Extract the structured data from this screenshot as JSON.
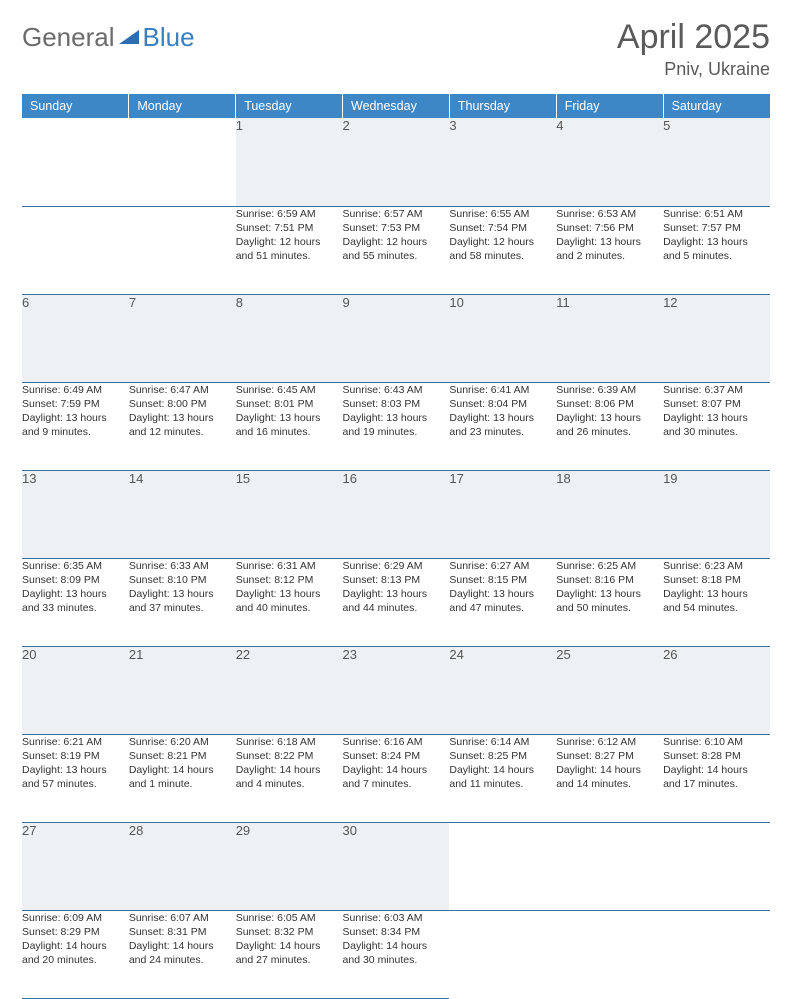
{
  "brand": {
    "part1": "General",
    "part2": "Blue"
  },
  "title": "April 2025",
  "location": "Pniv, Ukraine",
  "header_bg": "#3d87c7",
  "row_border": "#3d6ea0",
  "daynum_bg": "#eef1f3",
  "weekdays": [
    "Sunday",
    "Monday",
    "Tuesday",
    "Wednesday",
    "Thursday",
    "Friday",
    "Saturday"
  ],
  "weeks": [
    [
      null,
      null,
      {
        "n": "1",
        "sr": "Sunrise: 6:59 AM",
        "ss": "Sunset: 7:51 PM",
        "dl1": "Daylight: 12 hours",
        "dl2": "and 51 minutes."
      },
      {
        "n": "2",
        "sr": "Sunrise: 6:57 AM",
        "ss": "Sunset: 7:53 PM",
        "dl1": "Daylight: 12 hours",
        "dl2": "and 55 minutes."
      },
      {
        "n": "3",
        "sr": "Sunrise: 6:55 AM",
        "ss": "Sunset: 7:54 PM",
        "dl1": "Daylight: 12 hours",
        "dl2": "and 58 minutes."
      },
      {
        "n": "4",
        "sr": "Sunrise: 6:53 AM",
        "ss": "Sunset: 7:56 PM",
        "dl1": "Daylight: 13 hours",
        "dl2": "and 2 minutes."
      },
      {
        "n": "5",
        "sr": "Sunrise: 6:51 AM",
        "ss": "Sunset: 7:57 PM",
        "dl1": "Daylight: 13 hours",
        "dl2": "and 5 minutes."
      }
    ],
    [
      {
        "n": "6",
        "sr": "Sunrise: 6:49 AM",
        "ss": "Sunset: 7:59 PM",
        "dl1": "Daylight: 13 hours",
        "dl2": "and 9 minutes."
      },
      {
        "n": "7",
        "sr": "Sunrise: 6:47 AM",
        "ss": "Sunset: 8:00 PM",
        "dl1": "Daylight: 13 hours",
        "dl2": "and 12 minutes."
      },
      {
        "n": "8",
        "sr": "Sunrise: 6:45 AM",
        "ss": "Sunset: 8:01 PM",
        "dl1": "Daylight: 13 hours",
        "dl2": "and 16 minutes."
      },
      {
        "n": "9",
        "sr": "Sunrise: 6:43 AM",
        "ss": "Sunset: 8:03 PM",
        "dl1": "Daylight: 13 hours",
        "dl2": "and 19 minutes."
      },
      {
        "n": "10",
        "sr": "Sunrise: 6:41 AM",
        "ss": "Sunset: 8:04 PM",
        "dl1": "Daylight: 13 hours",
        "dl2": "and 23 minutes."
      },
      {
        "n": "11",
        "sr": "Sunrise: 6:39 AM",
        "ss": "Sunset: 8:06 PM",
        "dl1": "Daylight: 13 hours",
        "dl2": "and 26 minutes."
      },
      {
        "n": "12",
        "sr": "Sunrise: 6:37 AM",
        "ss": "Sunset: 8:07 PM",
        "dl1": "Daylight: 13 hours",
        "dl2": "and 30 minutes."
      }
    ],
    [
      {
        "n": "13",
        "sr": "Sunrise: 6:35 AM",
        "ss": "Sunset: 8:09 PM",
        "dl1": "Daylight: 13 hours",
        "dl2": "and 33 minutes."
      },
      {
        "n": "14",
        "sr": "Sunrise: 6:33 AM",
        "ss": "Sunset: 8:10 PM",
        "dl1": "Daylight: 13 hours",
        "dl2": "and 37 minutes."
      },
      {
        "n": "15",
        "sr": "Sunrise: 6:31 AM",
        "ss": "Sunset: 8:12 PM",
        "dl1": "Daylight: 13 hours",
        "dl2": "and 40 minutes."
      },
      {
        "n": "16",
        "sr": "Sunrise: 6:29 AM",
        "ss": "Sunset: 8:13 PM",
        "dl1": "Daylight: 13 hours",
        "dl2": "and 44 minutes."
      },
      {
        "n": "17",
        "sr": "Sunrise: 6:27 AM",
        "ss": "Sunset: 8:15 PM",
        "dl1": "Daylight: 13 hours",
        "dl2": "and 47 minutes."
      },
      {
        "n": "18",
        "sr": "Sunrise: 6:25 AM",
        "ss": "Sunset: 8:16 PM",
        "dl1": "Daylight: 13 hours",
        "dl2": "and 50 minutes."
      },
      {
        "n": "19",
        "sr": "Sunrise: 6:23 AM",
        "ss": "Sunset: 8:18 PM",
        "dl1": "Daylight: 13 hours",
        "dl2": "and 54 minutes."
      }
    ],
    [
      {
        "n": "20",
        "sr": "Sunrise: 6:21 AM",
        "ss": "Sunset: 8:19 PM",
        "dl1": "Daylight: 13 hours",
        "dl2": "and 57 minutes."
      },
      {
        "n": "21",
        "sr": "Sunrise: 6:20 AM",
        "ss": "Sunset: 8:21 PM",
        "dl1": "Daylight: 14 hours",
        "dl2": "and 1 minute."
      },
      {
        "n": "22",
        "sr": "Sunrise: 6:18 AM",
        "ss": "Sunset: 8:22 PM",
        "dl1": "Daylight: 14 hours",
        "dl2": "and 4 minutes."
      },
      {
        "n": "23",
        "sr": "Sunrise: 6:16 AM",
        "ss": "Sunset: 8:24 PM",
        "dl1": "Daylight: 14 hours",
        "dl2": "and 7 minutes."
      },
      {
        "n": "24",
        "sr": "Sunrise: 6:14 AM",
        "ss": "Sunset: 8:25 PM",
        "dl1": "Daylight: 14 hours",
        "dl2": "and 11 minutes."
      },
      {
        "n": "25",
        "sr": "Sunrise: 6:12 AM",
        "ss": "Sunset: 8:27 PM",
        "dl1": "Daylight: 14 hours",
        "dl2": "and 14 minutes."
      },
      {
        "n": "26",
        "sr": "Sunrise: 6:10 AM",
        "ss": "Sunset: 8:28 PM",
        "dl1": "Daylight: 14 hours",
        "dl2": "and 17 minutes."
      }
    ],
    [
      {
        "n": "27",
        "sr": "Sunrise: 6:09 AM",
        "ss": "Sunset: 8:29 PM",
        "dl1": "Daylight: 14 hours",
        "dl2": "and 20 minutes."
      },
      {
        "n": "28",
        "sr": "Sunrise: 6:07 AM",
        "ss": "Sunset: 8:31 PM",
        "dl1": "Daylight: 14 hours",
        "dl2": "and 24 minutes."
      },
      {
        "n": "29",
        "sr": "Sunrise: 6:05 AM",
        "ss": "Sunset: 8:32 PM",
        "dl1": "Daylight: 14 hours",
        "dl2": "and 27 minutes."
      },
      {
        "n": "30",
        "sr": "Sunrise: 6:03 AM",
        "ss": "Sunset: 8:34 PM",
        "dl1": "Daylight: 14 hours",
        "dl2": "and 30 minutes."
      },
      null,
      null,
      null
    ]
  ]
}
